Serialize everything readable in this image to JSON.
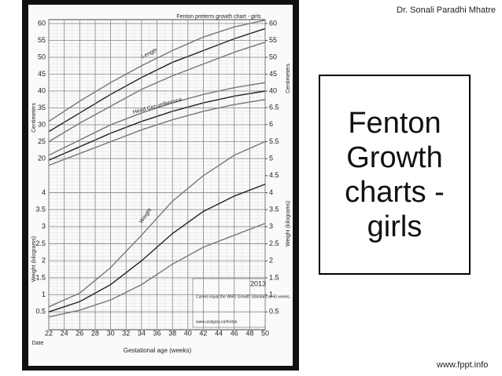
{
  "header": {
    "author": "Dr. Sonali Paradhi Mhatre"
  },
  "slide": {
    "title": "Fenton Growth charts -girls"
  },
  "footer": {
    "site": "www.fppt.info"
  },
  "chart_data": [
    {
      "type": "line",
      "title": "Fenton preterm growth chart - girls",
      "x": [
        22,
        26,
        30,
        34,
        38,
        42,
        46,
        50
      ],
      "xlim": [
        22,
        50
      ],
      "ylim": [
        20,
        60
      ],
      "yticks": [
        20,
        25,
        30,
        35,
        40,
        45,
        50,
        55,
        60
      ],
      "y2lim": [
        20,
        60
      ],
      "y2ticks": [
        40,
        45,
        50,
        55,
        60
      ],
      "y_label": "Centimeters",
      "y2_label": "Centimeters",
      "annotations": [
        "Length",
        "Head Circumference"
      ],
      "grid": true,
      "series": [
        {
          "color": "#777777",
          "values": [
            25,
            30.5,
            35.5,
            40.5,
            44.5,
            48,
            51.5,
            54.5
          ]
        },
        {
          "color": "#222222",
          "values": [
            28,
            33.5,
            39,
            44,
            48.5,
            52,
            55.5,
            58.5
          ]
        },
        {
          "color": "#777777",
          "values": [
            31,
            37,
            42.5,
            47.5,
            52,
            56,
            59,
            61
          ]
        },
        {
          "color": "#777777",
          "values": [
            18,
            21.5,
            25,
            28.5,
            31.5,
            34,
            36,
            37.5
          ]
        },
        {
          "color": "#222222",
          "values": [
            19.5,
            23.5,
            27.5,
            31,
            34,
            36.5,
            38.5,
            40
          ]
        },
        {
          "color": "#777777",
          "values": [
            21,
            25.5,
            30,
            33.5,
            36.5,
            39,
            41,
            42.5
          ]
        }
      ]
    },
    {
      "type": "line",
      "x": [
        22,
        26,
        30,
        34,
        38,
        42,
        46,
        50
      ],
      "xlim": [
        22,
        50
      ],
      "xticks": [
        22,
        24,
        26,
        28,
        30,
        32,
        34,
        36,
        38,
        40,
        42,
        44,
        46,
        48,
        50
      ],
      "x_label": "Gestational age (weeks)",
      "row_label": "Date",
      "ylim": [
        0,
        6.5
      ],
      "yticks": [
        0.5,
        1,
        1.5,
        2,
        2.5,
        3,
        3.5,
        4
      ],
      "y2lim": [
        0,
        6.5
      ],
      "y2ticks": [
        0.5,
        1,
        1.5,
        2,
        2.5,
        3,
        3.5,
        4,
        4.5,
        5,
        5.5,
        6,
        6.5
      ],
      "y_label": "Weight (kilograms)",
      "y2_label": "Weight (kilograms)",
      "annotations": [
        "Weight"
      ],
      "notes": [
        "2013",
        "Curves equal the WHO Growth Standard at 50 weeks.",
        "www.ucalgary.ca/fenton"
      ],
      "grid": true,
      "series": [
        {
          "color": "#777777",
          "values": [
            0.35,
            0.55,
            0.85,
            1.3,
            1.9,
            2.4,
            2.75,
            3.1
          ]
        },
        {
          "color": "#222222",
          "values": [
            0.5,
            0.8,
            1.3,
            2.0,
            2.8,
            3.45,
            3.9,
            4.25
          ]
        },
        {
          "color": "#777777",
          "values": [
            0.65,
            1.05,
            1.8,
            2.75,
            3.75,
            4.5,
            5.1,
            5.5
          ]
        }
      ]
    }
  ]
}
